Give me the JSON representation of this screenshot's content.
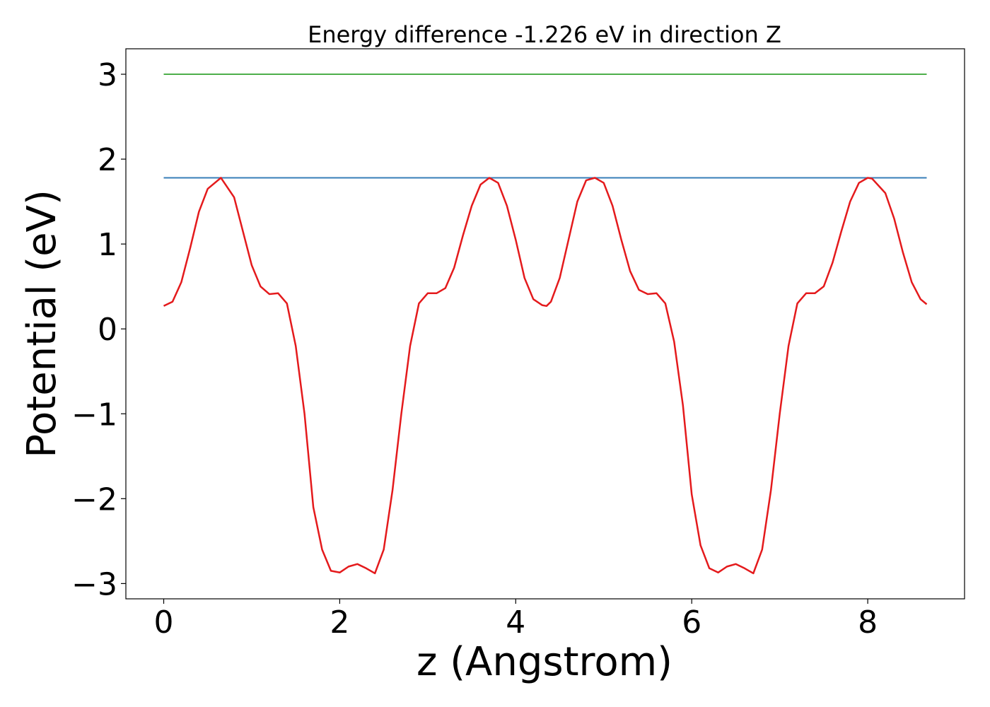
{
  "chart_data": {
    "type": "line",
    "title": "Energy difference -1.226 eV in direction Z",
    "xlabel": "z (Angstrom)",
    "ylabel": "Potential (eV)",
    "xlim": [
      -0.43,
      9.1
    ],
    "ylim": [
      -3.18,
      3.3
    ],
    "xticks": [
      0,
      2,
      4,
      6,
      8
    ],
    "xtick_labels": [
      "0",
      "2",
      "4",
      "6",
      "8"
    ],
    "yticks": [
      -3,
      -2,
      -1,
      0,
      1,
      2,
      3
    ],
    "ytick_labels": [
      "−3",
      "−2",
      "−1",
      "0",
      "1",
      "2",
      "3"
    ],
    "grid": false,
    "colors": {
      "potential": "#e41a1c",
      "upper_line": "#4daf4a",
      "max_line": "#377eb8"
    },
    "series": [
      {
        "key": "potential",
        "x": [
          0,
          0.1,
          0.2,
          0.3,
          0.4,
          0.5,
          0.65,
          0.8,
          0.9,
          1.0,
          1.1,
          1.2,
          1.3,
          1.4,
          1.5,
          1.6,
          1.7,
          1.8,
          1.9,
          2.0,
          2.1,
          2.2,
          2.3,
          2.4,
          2.5,
          2.6,
          2.7,
          2.8,
          2.9,
          3.0,
          3.1,
          3.2,
          3.3,
          3.4,
          3.5,
          3.6,
          3.7,
          3.8,
          3.9,
          4.0,
          4.1,
          4.2,
          4.3,
          4.35,
          4.4,
          4.5,
          4.6,
          4.7,
          4.8,
          4.9,
          5.0,
          5.1,
          5.2,
          5.3,
          5.4,
          5.5,
          5.6,
          5.7,
          5.8,
          5.9,
          6.0,
          6.1,
          6.2,
          6.3,
          6.4,
          6.5,
          6.6,
          6.7,
          6.8,
          6.9,
          7.0,
          7.1,
          7.2,
          7.3,
          7.4,
          7.5,
          7.6,
          7.7,
          7.8,
          7.9,
          8.0,
          8.05,
          8.2,
          8.3,
          8.4,
          8.5,
          8.6,
          8.67
        ],
        "y": [
          0.27,
          0.32,
          0.55,
          0.95,
          1.38,
          1.65,
          1.78,
          1.55,
          1.15,
          0.75,
          0.5,
          0.41,
          0.42,
          0.3,
          -0.2,
          -1.0,
          -2.1,
          -2.6,
          -2.85,
          -2.87,
          -2.8,
          -2.77,
          -2.82,
          -2.88,
          -2.6,
          -1.9,
          -1.0,
          -0.2,
          0.3,
          0.42,
          0.42,
          0.48,
          0.72,
          1.1,
          1.45,
          1.7,
          1.78,
          1.72,
          1.45,
          1.05,
          0.6,
          0.35,
          0.28,
          0.27,
          0.32,
          0.6,
          1.05,
          1.5,
          1.75,
          1.78,
          1.72,
          1.45,
          1.05,
          0.68,
          0.46,
          0.41,
          0.42,
          0.3,
          -0.15,
          -0.9,
          -1.95,
          -2.55,
          -2.82,
          -2.87,
          -2.8,
          -2.77,
          -2.82,
          -2.88,
          -2.6,
          -1.9,
          -1.0,
          -0.2,
          0.3,
          0.42,
          0.42,
          0.5,
          0.78,
          1.15,
          1.5,
          1.72,
          1.78,
          1.77,
          1.6,
          1.3,
          0.9,
          0.55,
          0.35,
          0.29
        ]
      },
      {
        "key": "upper_line",
        "x": [
          0,
          8.67
        ],
        "y": [
          3.0,
          3.0
        ]
      },
      {
        "key": "max_line",
        "x": [
          0,
          8.67
        ],
        "y": [
          1.78,
          1.78
        ]
      }
    ]
  }
}
